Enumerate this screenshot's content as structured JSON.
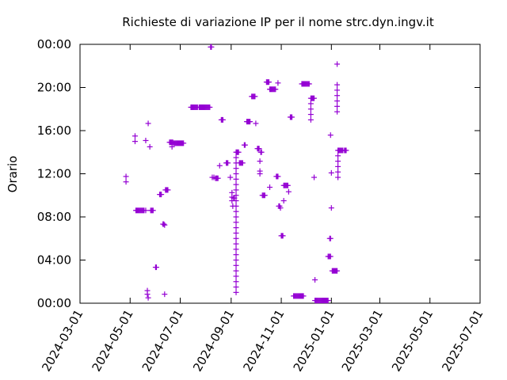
{
  "chart_data": {
    "type": "scatter",
    "title": "Richieste di variazione IP per il nome strc.dyn.ingv.it",
    "xlabel": "",
    "ylabel": "Orario",
    "x_axis": {
      "type": "date",
      "range": [
        "2024-03-01",
        "2025-07-01"
      ],
      "ticks": [
        "2024-03-01",
        "2024-05-01",
        "2024-07-01",
        "2024-09-01",
        "2024-11-01",
        "2025-01-01",
        "2025-03-01",
        "2025-05-01",
        "2025-07-01"
      ]
    },
    "y_axis": {
      "type": "time-of-day",
      "range": [
        "00:00",
        "24:00"
      ],
      "ticks": [
        "00:00",
        "04:00",
        "08:00",
        "12:00",
        "16:00",
        "20:00",
        "00:00"
      ]
    },
    "grid": false,
    "marker": "plus",
    "color": "#9400d3",
    "points": [
      [
        "2024-04-26",
        "11:45"
      ],
      [
        "2024-04-26",
        "11:15"
      ],
      [
        "2024-05-07",
        "15:30"
      ],
      [
        "2024-05-07",
        "15:00"
      ],
      [
        "2024-05-08",
        "08:36"
      ],
      [
        "2024-05-09",
        "08:36"
      ],
      [
        "2024-05-10",
        "08:36"
      ],
      [
        "2024-05-11",
        "08:36"
      ],
      [
        "2024-05-12",
        "08:36"
      ],
      [
        "2024-05-13",
        "08:36"
      ],
      [
        "2024-05-14",
        "08:36"
      ],
      [
        "2024-05-15",
        "08:36"
      ],
      [
        "2024-05-16",
        "08:36"
      ],
      [
        "2024-05-17",
        "08:36"
      ],
      [
        "2024-05-18",
        "08:36"
      ],
      [
        "2024-05-20",
        "08:36"
      ],
      [
        "2024-05-20",
        "15:05"
      ],
      [
        "2024-05-22",
        "01:10"
      ],
      [
        "2024-05-22",
        "00:50"
      ],
      [
        "2024-05-23",
        "00:30"
      ],
      [
        "2024-05-23",
        "16:40"
      ],
      [
        "2024-05-25",
        "14:30"
      ],
      [
        "2024-05-26",
        "08:36"
      ],
      [
        "2024-05-27",
        "08:36"
      ],
      [
        "2024-05-28",
        "08:36"
      ],
      [
        "2024-05-29",
        "08:36"
      ],
      [
        "2024-06-01",
        "03:20"
      ],
      [
        "2024-06-02",
        "03:20"
      ],
      [
        "2024-06-06",
        "10:05"
      ],
      [
        "2024-06-07",
        "10:05"
      ],
      [
        "2024-06-08",
        "10:05"
      ],
      [
        "2024-06-10",
        "07:20"
      ],
      [
        "2024-06-11",
        "07:20"
      ],
      [
        "2024-06-12",
        "07:15"
      ],
      [
        "2024-06-12",
        "00:50"
      ],
      [
        "2024-06-13",
        "10:30"
      ],
      [
        "2024-06-14",
        "10:30"
      ],
      [
        "2024-06-15",
        "10:30"
      ],
      [
        "2024-06-16",
        "10:30"
      ],
      [
        "2024-06-18",
        "14:55"
      ],
      [
        "2024-06-19",
        "14:55"
      ],
      [
        "2024-06-20",
        "14:55"
      ],
      [
        "2024-06-21",
        "14:55"
      ],
      [
        "2024-06-22",
        "14:55"
      ],
      [
        "2024-06-21",
        "14:30"
      ],
      [
        "2024-06-23",
        "14:50"
      ],
      [
        "2024-06-24",
        "14:50"
      ],
      [
        "2024-06-25",
        "14:50"
      ],
      [
        "2024-06-26",
        "14:50"
      ],
      [
        "2024-06-27",
        "14:50"
      ],
      [
        "2024-06-28",
        "14:50"
      ],
      [
        "2024-06-29",
        "14:50"
      ],
      [
        "2024-06-30",
        "14:50"
      ],
      [
        "2024-07-01",
        "14:50"
      ],
      [
        "2024-07-02",
        "14:50"
      ],
      [
        "2024-07-03",
        "14:50"
      ],
      [
        "2024-07-04",
        "14:50"
      ],
      [
        "2024-07-05",
        "14:50"
      ],
      [
        "2024-07-14",
        "18:10"
      ],
      [
        "2024-07-15",
        "18:10"
      ],
      [
        "2024-07-16",
        "18:10"
      ],
      [
        "2024-07-17",
        "18:10"
      ],
      [
        "2024-07-18",
        "18:10"
      ],
      [
        "2024-07-19",
        "18:10"
      ],
      [
        "2024-07-20",
        "18:10"
      ],
      [
        "2024-07-21",
        "18:10"
      ],
      [
        "2024-07-22",
        "18:10"
      ],
      [
        "2024-07-24",
        "18:10"
      ],
      [
        "2024-07-25",
        "18:10"
      ],
      [
        "2024-07-26",
        "18:10"
      ],
      [
        "2024-07-27",
        "18:10"
      ],
      [
        "2024-07-28",
        "18:10"
      ],
      [
        "2024-07-29",
        "18:10"
      ],
      [
        "2024-07-30",
        "18:10"
      ],
      [
        "2024-07-31",
        "18:10"
      ],
      [
        "2024-08-01",
        "18:10"
      ],
      [
        "2024-08-02",
        "18:10"
      ],
      [
        "2024-08-03",
        "18:10"
      ],
      [
        "2024-08-04",
        "18:10"
      ],
      [
        "2024-08-05",
        "18:10"
      ],
      [
        "2024-08-06",
        "18:10"
      ],
      [
        "2024-08-07",
        "23:45"
      ],
      [
        "2024-08-08",
        "23:45"
      ],
      [
        "2024-08-09",
        "11:40"
      ],
      [
        "2024-08-11",
        "11:40"
      ],
      [
        "2024-08-13",
        "11:35"
      ],
      [
        "2024-08-14",
        "11:35"
      ],
      [
        "2024-08-15",
        "11:35"
      ],
      [
        "2024-08-16",
        "11:35"
      ],
      [
        "2024-08-18",
        "12:45"
      ],
      [
        "2024-08-20",
        "17:00"
      ],
      [
        "2024-08-21",
        "17:00"
      ],
      [
        "2024-08-22",
        "17:00"
      ],
      [
        "2024-08-26",
        "13:00"
      ],
      [
        "2024-08-27",
        "13:00"
      ],
      [
        "2024-08-28",
        "13:00"
      ],
      [
        "2024-08-31",
        "11:40"
      ],
      [
        "2024-09-02",
        "10:15"
      ],
      [
        "2024-09-02",
        "09:50"
      ],
      [
        "2024-09-02",
        "09:30"
      ],
      [
        "2024-09-03",
        "09:00"
      ],
      [
        "2024-09-04",
        "09:45"
      ],
      [
        "2024-09-05",
        "09:45"
      ],
      [
        "2024-09-07",
        "14:00"
      ],
      [
        "2024-09-08",
        "14:00"
      ],
      [
        "2024-09-09",
        "14:00"
      ],
      [
        "2024-09-10",
        "14:00"
      ],
      [
        "2024-09-07",
        "13:30"
      ],
      [
        "2024-09-07",
        "13:00"
      ],
      [
        "2024-09-07",
        "12:30"
      ],
      [
        "2024-09-07",
        "12:00"
      ],
      [
        "2024-09-07",
        "11:30"
      ],
      [
        "2024-09-07",
        "11:00"
      ],
      [
        "2024-09-07",
        "10:30"
      ],
      [
        "2024-09-07",
        "10:00"
      ],
      [
        "2024-09-07",
        "09:30"
      ],
      [
        "2024-09-07",
        "09:00"
      ],
      [
        "2024-09-07",
        "08:30"
      ],
      [
        "2024-09-07",
        "08:00"
      ],
      [
        "2024-09-07",
        "07:30"
      ],
      [
        "2024-09-07",
        "07:00"
      ],
      [
        "2024-09-07",
        "06:30"
      ],
      [
        "2024-09-07",
        "06:00"
      ],
      [
        "2024-09-07",
        "05:30"
      ],
      [
        "2024-09-07",
        "05:00"
      ],
      [
        "2024-09-07",
        "04:30"
      ],
      [
        "2024-09-07",
        "04:00"
      ],
      [
        "2024-09-07",
        "03:30"
      ],
      [
        "2024-09-07",
        "03:00"
      ],
      [
        "2024-09-07",
        "02:30"
      ],
      [
        "2024-09-07",
        "02:00"
      ],
      [
        "2024-09-07",
        "01:30"
      ],
      [
        "2024-09-07",
        "01:00"
      ],
      [
        "2024-09-11",
        "13:00"
      ],
      [
        "2024-09-12",
        "13:00"
      ],
      [
        "2024-09-13",
        "13:00"
      ],
      [
        "2024-09-14",
        "13:00"
      ],
      [
        "2024-09-15",
        "13:00"
      ],
      [
        "2024-09-17",
        "14:40"
      ],
      [
        "2024-09-18",
        "14:40"
      ],
      [
        "2024-09-20",
        "16:50"
      ],
      [
        "2024-09-21",
        "16:50"
      ],
      [
        "2024-09-22",
        "16:50"
      ],
      [
        "2024-09-23",
        "16:50"
      ],
      [
        "2024-09-24",
        "16:50"
      ],
      [
        "2024-09-26",
        "19:10"
      ],
      [
        "2024-09-27",
        "19:10"
      ],
      [
        "2024-09-28",
        "19:10"
      ],
      [
        "2024-09-29",
        "19:10"
      ],
      [
        "2024-09-30",
        "19:10"
      ],
      [
        "2024-10-01",
        "16:40"
      ],
      [
        "2024-10-03",
        "14:20"
      ],
      [
        "2024-10-04",
        "14:20"
      ],
      [
        "2024-10-05",
        "14:20"
      ],
      [
        "2024-10-06",
        "13:10"
      ],
      [
        "2024-10-06",
        "12:15"
      ],
      [
        "2024-10-06",
        "12:00"
      ],
      [
        "2024-10-07",
        "14:00"
      ],
      [
        "2024-10-08",
        "14:00"
      ],
      [
        "2024-10-09",
        "10:00"
      ],
      [
        "2024-10-10",
        "10:00"
      ],
      [
        "2024-10-11",
        "10:00"
      ],
      [
        "2024-10-12",
        "10:00"
      ],
      [
        "2024-10-14",
        "20:30"
      ],
      [
        "2024-10-15",
        "20:30"
      ],
      [
        "2024-10-16",
        "20:30"
      ],
      [
        "2024-10-17",
        "20:30"
      ],
      [
        "2024-10-18",
        "10:45"
      ],
      [
        "2024-10-18",
        "19:50"
      ],
      [
        "2024-10-19",
        "19:50"
      ],
      [
        "2024-10-20",
        "19:50"
      ],
      [
        "2024-10-21",
        "19:50"
      ],
      [
        "2024-10-22",
        "19:50"
      ],
      [
        "2024-10-23",
        "19:50"
      ],
      [
        "2024-10-24",
        "19:50"
      ],
      [
        "2024-10-25",
        "19:50"
      ],
      [
        "2024-10-28",
        "20:25"
      ],
      [
        "2024-10-26",
        "11:45"
      ],
      [
        "2024-10-27",
        "11:45"
      ],
      [
        "2024-10-28",
        "11:45"
      ],
      [
        "2024-10-29",
        "09:00"
      ],
      [
        "2024-10-30",
        "09:00"
      ],
      [
        "2024-10-31",
        "08:50"
      ],
      [
        "2024-11-01",
        "06:15"
      ],
      [
        "2024-11-02",
        "06:15"
      ],
      [
        "2024-11-03",
        "06:15"
      ],
      [
        "2024-11-04",
        "09:30"
      ],
      [
        "2024-11-04",
        "10:55"
      ],
      [
        "2024-11-05",
        "10:55"
      ],
      [
        "2024-11-06",
        "10:55"
      ],
      [
        "2024-11-07",
        "10:55"
      ],
      [
        "2024-11-08",
        "10:55"
      ],
      [
        "2024-11-09",
        "10:55"
      ],
      [
        "2024-11-10",
        "10:20"
      ],
      [
        "2024-11-12",
        "17:15"
      ],
      [
        "2024-11-13",
        "17:15"
      ],
      [
        "2024-11-14",
        "17:15"
      ],
      [
        "2024-11-16",
        "00:40"
      ],
      [
        "2024-11-17",
        "00:40"
      ],
      [
        "2024-11-18",
        "00:40"
      ],
      [
        "2024-11-19",
        "00:40"
      ],
      [
        "2024-11-20",
        "00:40"
      ],
      [
        "2024-11-21",
        "00:40"
      ],
      [
        "2024-11-22",
        "00:40"
      ],
      [
        "2024-11-23",
        "00:40"
      ],
      [
        "2024-11-24",
        "00:40"
      ],
      [
        "2024-11-25",
        "00:40"
      ],
      [
        "2024-11-26",
        "00:40"
      ],
      [
        "2024-11-27",
        "00:40"
      ],
      [
        "2024-11-28",
        "00:40"
      ],
      [
        "2024-11-26",
        "20:20"
      ],
      [
        "2024-11-27",
        "20:20"
      ],
      [
        "2024-11-28",
        "20:20"
      ],
      [
        "2024-11-29",
        "20:20"
      ],
      [
        "2024-11-30",
        "20:20"
      ],
      [
        "2024-12-01",
        "20:20"
      ],
      [
        "2024-12-02",
        "20:20"
      ],
      [
        "2024-12-03",
        "20:20"
      ],
      [
        "2024-12-04",
        "20:20"
      ],
      [
        "2024-12-05",
        "20:20"
      ],
      [
        "2024-12-07",
        "19:00"
      ],
      [
        "2024-12-08",
        "19:00"
      ],
      [
        "2024-12-09",
        "19:00"
      ],
      [
        "2024-12-10",
        "19:00"
      ],
      [
        "2024-12-11",
        "19:00"
      ],
      [
        "2024-12-07",
        "18:30"
      ],
      [
        "2024-12-07",
        "18:00"
      ],
      [
        "2024-12-07",
        "17:30"
      ],
      [
        "2024-12-07",
        "17:00"
      ],
      [
        "2024-12-11",
        "11:40"
      ],
      [
        "2024-12-12",
        "02:10"
      ],
      [
        "2024-12-12",
        "00:15"
      ],
      [
        "2024-12-13",
        "00:15"
      ],
      [
        "2024-12-14",
        "00:15"
      ],
      [
        "2024-12-15",
        "00:15"
      ],
      [
        "2024-12-16",
        "00:15"
      ],
      [
        "2024-12-17",
        "00:15"
      ],
      [
        "2024-12-18",
        "00:15"
      ],
      [
        "2024-12-19",
        "00:15"
      ],
      [
        "2024-12-20",
        "00:15"
      ],
      [
        "2024-12-21",
        "00:15"
      ],
      [
        "2024-12-22",
        "00:15"
      ],
      [
        "2024-12-23",
        "00:15"
      ],
      [
        "2024-12-24",
        "00:15"
      ],
      [
        "2024-12-25",
        "00:15"
      ],
      [
        "2024-12-26",
        "00:15"
      ],
      [
        "2024-12-27",
        "00:15"
      ],
      [
        "2024-12-28",
        "00:15"
      ],
      [
        "2024-12-28",
        "04:20"
      ],
      [
        "2024-12-29",
        "04:20"
      ],
      [
        "2024-12-30",
        "04:20"
      ],
      [
        "2024-12-31",
        "04:20"
      ],
      [
        "2024-12-30",
        "06:00"
      ],
      [
        "2024-12-31",
        "06:00"
      ],
      [
        "2024-12-31",
        "15:35"
      ],
      [
        "2025-01-01",
        "12:05"
      ],
      [
        "2025-01-01",
        "08:50"
      ],
      [
        "2025-01-02",
        "03:00"
      ],
      [
        "2025-01-03",
        "03:00"
      ],
      [
        "2025-01-04",
        "03:00"
      ],
      [
        "2025-01-05",
        "03:00"
      ],
      [
        "2025-01-06",
        "03:00"
      ],
      [
        "2025-01-07",
        "03:00"
      ],
      [
        "2025-01-08",
        "03:00"
      ],
      [
        "2025-01-08",
        "22:10"
      ],
      [
        "2025-01-08",
        "20:15"
      ],
      [
        "2025-01-08",
        "19:45"
      ],
      [
        "2025-01-08",
        "19:15"
      ],
      [
        "2025-01-08",
        "18:45"
      ],
      [
        "2025-01-08",
        "18:15"
      ],
      [
        "2025-01-08",
        "17:45"
      ],
      [
        "2025-01-09",
        "14:10"
      ],
      [
        "2025-01-09",
        "13:40"
      ],
      [
        "2025-01-09",
        "13:10"
      ],
      [
        "2025-01-09",
        "12:40"
      ],
      [
        "2025-01-09",
        "12:10"
      ],
      [
        "2025-01-09",
        "11:40"
      ],
      [
        "2025-01-10",
        "14:10"
      ],
      [
        "2025-01-11",
        "14:10"
      ],
      [
        "2025-01-12",
        "14:10"
      ],
      [
        "2025-01-13",
        "14:10"
      ],
      [
        "2025-01-14",
        "14:10"
      ],
      [
        "2025-01-15",
        "14:10"
      ],
      [
        "2025-01-17",
        "14:10"
      ],
      [
        "2025-01-18",
        "14:10"
      ],
      [
        "2025-01-19",
        "14:10"
      ]
    ]
  }
}
